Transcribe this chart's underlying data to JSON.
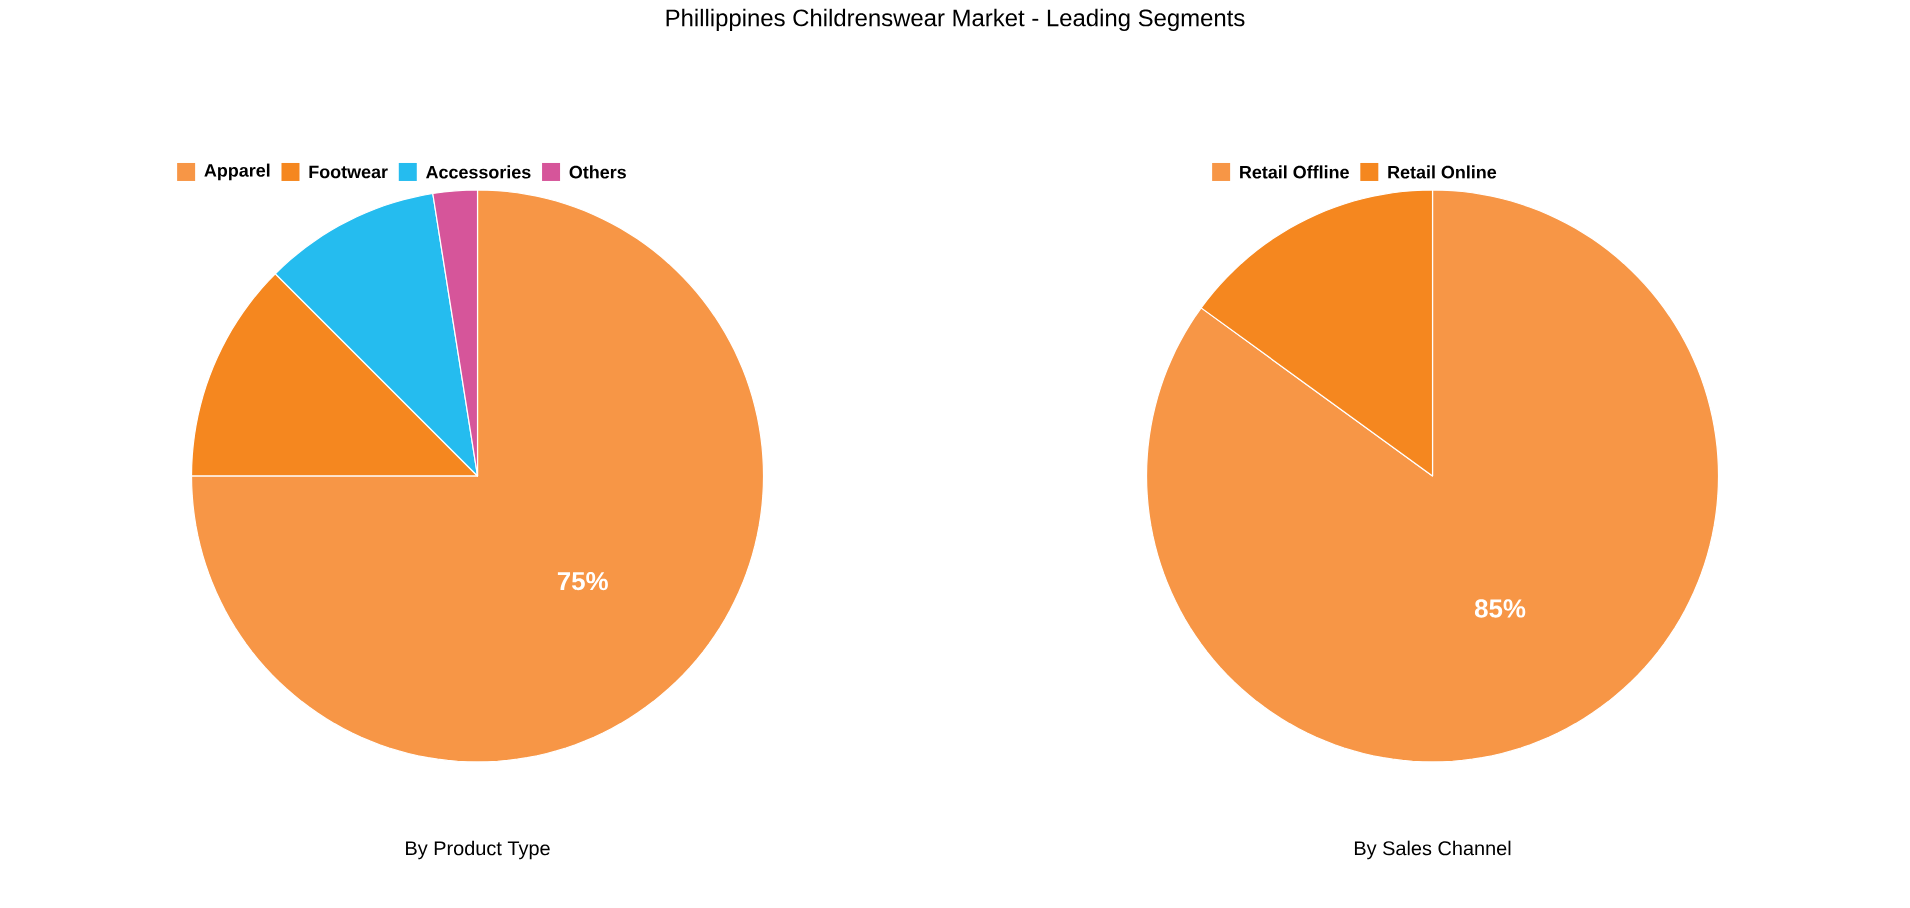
{
  "chart_data": [
    {
      "type": "pie",
      "title": "Phillippines Childrenswear Market - Leading Segments",
      "xlabel": "By Product Type",
      "categories": [
        "Apparel",
        "Footwear",
        "Accessories",
        "Others"
      ],
      "values": [
        75,
        12.5,
        10,
        2.5
      ],
      "colors": [
        "#f79646",
        "#f5871f",
        "#25bcef",
        "#d6559a"
      ],
      "value_labels": [
        "75%",
        null,
        null,
        null
      ],
      "legend": "top"
    },
    {
      "type": "pie",
      "xlabel": "By Sales Channel",
      "categories": [
        "Retail Offline",
        "Retail Online"
      ],
      "values": [
        85,
        15
      ],
      "colors": [
        "#f79646",
        "#f5871f"
      ],
      "value_labels": [
        "85%",
        null
      ],
      "legend": "top"
    }
  ]
}
